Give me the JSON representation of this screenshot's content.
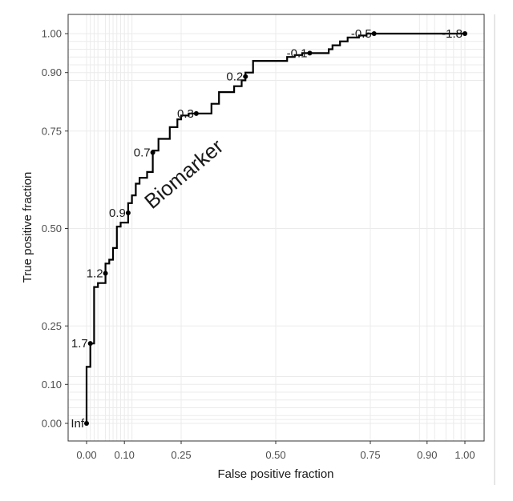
{
  "chart_data": {
    "type": "line",
    "subtype": "roc-step-curve",
    "title": "",
    "xlabel": "False positive fraction",
    "ylabel": "True positive fraction",
    "xlim": [
      0,
      1
    ],
    "ylim": [
      0,
      1
    ],
    "grid": true,
    "x_ticks": [
      0.0,
      0.1,
      0.25,
      0.5,
      0.75,
      0.9,
      1.0
    ],
    "x_tick_labels": [
      "0.00",
      "0.10",
      "0.25",
      "0.50",
      "0.75",
      "0.90",
      "1.00"
    ],
    "y_ticks": [
      0.0,
      0.1,
      0.25,
      0.5,
      0.75,
      0.9,
      1.0
    ],
    "y_tick_labels": [
      "0.00",
      "0.10",
      "0.25",
      "0.50",
      "0.75",
      "0.90",
      "1.00"
    ],
    "annotation": "Biomarker",
    "line_color": "#000000",
    "grid_color": "#ebebeb",
    "cutoffs": [
      {
        "label": "Inf",
        "x": 0.0,
        "y": 0.0
      },
      {
        "label": "1.7",
        "x": 0.01,
        "y": 0.205
      },
      {
        "label": "1.2",
        "x": 0.05,
        "y": 0.385
      },
      {
        "label": "0.9",
        "x": 0.11,
        "y": 0.54
      },
      {
        "label": "0.7",
        "x": 0.175,
        "y": 0.695
      },
      {
        "label": "0.3",
        "x": 0.29,
        "y": 0.795
      },
      {
        "label": "0.2",
        "x": 0.42,
        "y": 0.89
      },
      {
        "label": "-0.1",
        "x": 0.59,
        "y": 0.95
      },
      {
        "label": "-0.5",
        "x": 0.76,
        "y": 1.0
      },
      {
        "label": "-1.8",
        "x": 1.0,
        "y": 1.0
      }
    ],
    "series": [
      {
        "name": "Biomarker",
        "points": [
          [
            0.0,
            0.0
          ],
          [
            0.0,
            0.145
          ],
          [
            0.01,
            0.145
          ],
          [
            0.01,
            0.205
          ],
          [
            0.02,
            0.205
          ],
          [
            0.02,
            0.35
          ],
          [
            0.03,
            0.35
          ],
          [
            0.03,
            0.36
          ],
          [
            0.05,
            0.36
          ],
          [
            0.05,
            0.41
          ],
          [
            0.06,
            0.41
          ],
          [
            0.06,
            0.42
          ],
          [
            0.07,
            0.42
          ],
          [
            0.07,
            0.45
          ],
          [
            0.08,
            0.45
          ],
          [
            0.08,
            0.505
          ],
          [
            0.09,
            0.505
          ],
          [
            0.09,
            0.515
          ],
          [
            0.11,
            0.515
          ],
          [
            0.11,
            0.565
          ],
          [
            0.12,
            0.565
          ],
          [
            0.12,
            0.585
          ],
          [
            0.13,
            0.585
          ],
          [
            0.13,
            0.615
          ],
          [
            0.14,
            0.615
          ],
          [
            0.14,
            0.63
          ],
          [
            0.16,
            0.63
          ],
          [
            0.16,
            0.645
          ],
          [
            0.175,
            0.645
          ],
          [
            0.175,
            0.7
          ],
          [
            0.19,
            0.7
          ],
          [
            0.19,
            0.73
          ],
          [
            0.22,
            0.73
          ],
          [
            0.22,
            0.76
          ],
          [
            0.24,
            0.76
          ],
          [
            0.24,
            0.78
          ],
          [
            0.25,
            0.78
          ],
          [
            0.25,
            0.79
          ],
          [
            0.27,
            0.79
          ],
          [
            0.27,
            0.795
          ],
          [
            0.33,
            0.795
          ],
          [
            0.33,
            0.82
          ],
          [
            0.35,
            0.82
          ],
          [
            0.35,
            0.85
          ],
          [
            0.39,
            0.85
          ],
          [
            0.39,
            0.865
          ],
          [
            0.41,
            0.865
          ],
          [
            0.41,
            0.88
          ],
          [
            0.42,
            0.88
          ],
          [
            0.42,
            0.9
          ],
          [
            0.44,
            0.9
          ],
          [
            0.44,
            0.93
          ],
          [
            0.53,
            0.93
          ],
          [
            0.53,
            0.94
          ],
          [
            0.55,
            0.94
          ],
          [
            0.55,
            0.945
          ],
          [
            0.57,
            0.945
          ],
          [
            0.57,
            0.95
          ],
          [
            0.64,
            0.95
          ],
          [
            0.64,
            0.96
          ],
          [
            0.65,
            0.96
          ],
          [
            0.65,
            0.97
          ],
          [
            0.67,
            0.97
          ],
          [
            0.67,
            0.98
          ],
          [
            0.69,
            0.98
          ],
          [
            0.69,
            0.99
          ],
          [
            0.72,
            0.99
          ],
          [
            0.72,
            0.995
          ],
          [
            0.74,
            0.995
          ],
          [
            0.74,
            1.0
          ],
          [
            1.0,
            1.0
          ]
        ]
      }
    ]
  }
}
